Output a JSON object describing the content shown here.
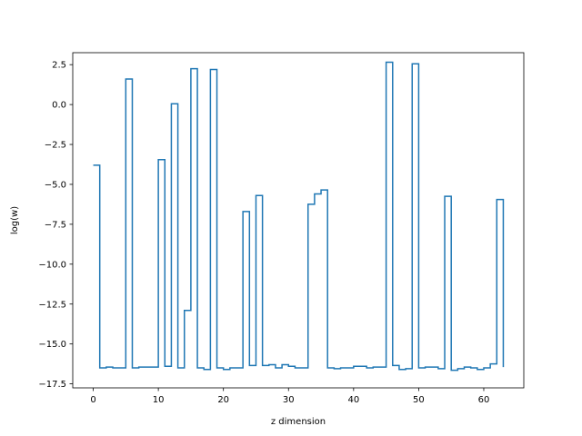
{
  "chart_data": {
    "type": "line",
    "drawstyle": "steps-post",
    "title": "",
    "xlabel": "z dimension",
    "ylabel": "log(w)",
    "xlim": [
      -3.15,
      66.15
    ],
    "ylim": [
      -17.75,
      3.25
    ],
    "xticks": [
      0,
      10,
      20,
      30,
      40,
      50,
      60
    ],
    "yticks": [
      2.5,
      0.0,
      -2.5,
      -5.0,
      -7.5,
      -10.0,
      -12.5,
      -15.0,
      -17.5
    ],
    "ytick_labels": [
      "2.5",
      "0.0",
      "−2.5",
      "−5.0",
      "−7.5",
      "−10.0",
      "−12.5",
      "−15.0",
      "−17.5"
    ],
    "grid": false,
    "legend": "none",
    "series": [
      {
        "color": "#1f77b4",
        "x": [
          0,
          1,
          2,
          3,
          4,
          5,
          6,
          7,
          8,
          9,
          10,
          11,
          12,
          13,
          14,
          15,
          16,
          17,
          18,
          19,
          20,
          21,
          22,
          23,
          24,
          25,
          26,
          27,
          28,
          29,
          30,
          31,
          32,
          33,
          34,
          35,
          36,
          37,
          38,
          39,
          40,
          41,
          42,
          43,
          44,
          45,
          46,
          47,
          48,
          49,
          50,
          51,
          52,
          53,
          54,
          55,
          56,
          57,
          58,
          59,
          60,
          61,
          62,
          63
        ],
        "values": [
          -3.8,
          -16.5,
          -16.45,
          -16.5,
          -16.5,
          1.6,
          -16.5,
          -16.45,
          -16.45,
          -16.45,
          -3.45,
          -16.4,
          0.05,
          -16.5,
          -12.9,
          2.25,
          -16.5,
          -16.6,
          2.2,
          -16.5,
          -16.6,
          -16.5,
          -16.5,
          -6.7,
          -16.35,
          -5.7,
          -16.35,
          -16.3,
          -16.5,
          -16.3,
          -16.4,
          -16.5,
          -16.5,
          -6.25,
          -5.6,
          -5.35,
          -16.5,
          -16.55,
          -16.5,
          -16.5,
          -16.4,
          -16.4,
          -16.5,
          -16.45,
          -16.45,
          2.65,
          -16.35,
          -16.6,
          -16.55,
          2.55,
          -16.5,
          -16.45,
          -16.45,
          -16.55,
          -5.75,
          -16.65,
          -16.55,
          -16.45,
          -16.5,
          -16.6,
          -16.5,
          -16.25,
          -5.95,
          -16.45
        ]
      }
    ]
  }
}
